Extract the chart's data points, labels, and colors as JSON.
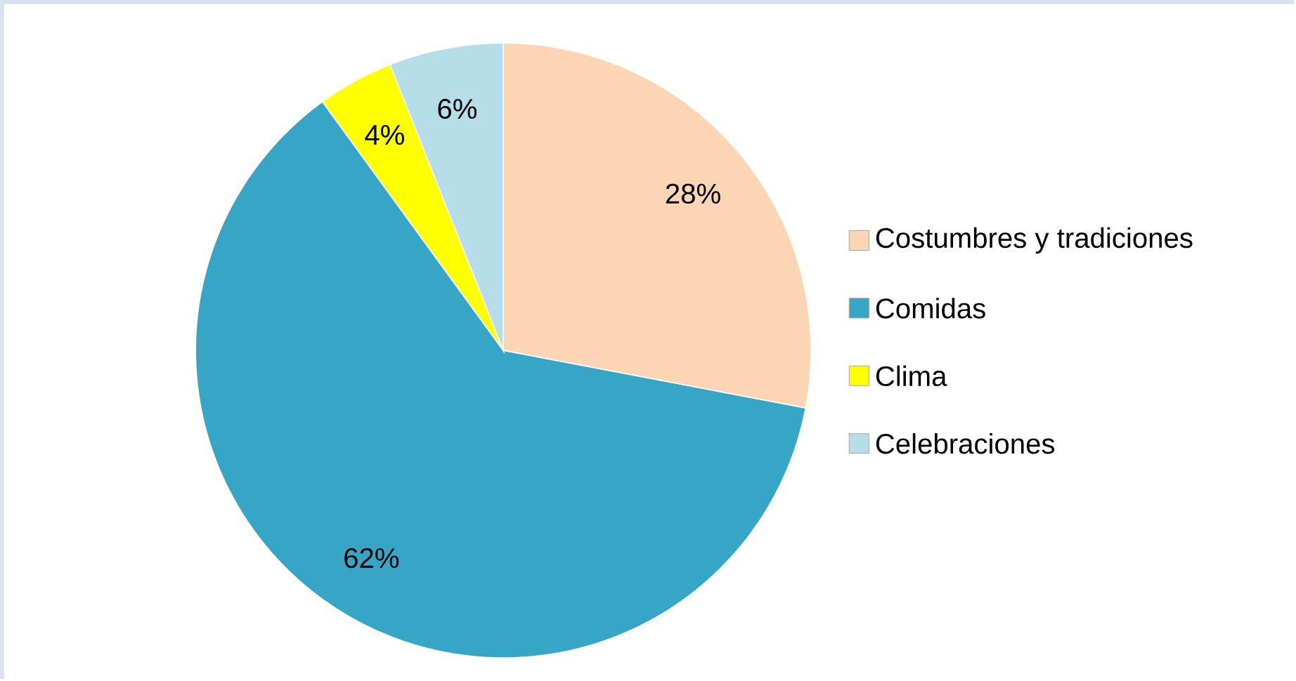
{
  "chart_data": {
    "type": "pie",
    "categories": [
      "Costumbres y tradiciones",
      "Comidas",
      "Clima",
      "Celebraciones"
    ],
    "values": [
      28,
      62,
      4,
      6
    ],
    "value_labels": [
      "28%",
      "62%",
      "4%",
      "6%"
    ],
    "colors": [
      "#fcd5b5",
      "#37a6c6",
      "#ffff00",
      "#b7dde8"
    ],
    "legend": "right"
  }
}
